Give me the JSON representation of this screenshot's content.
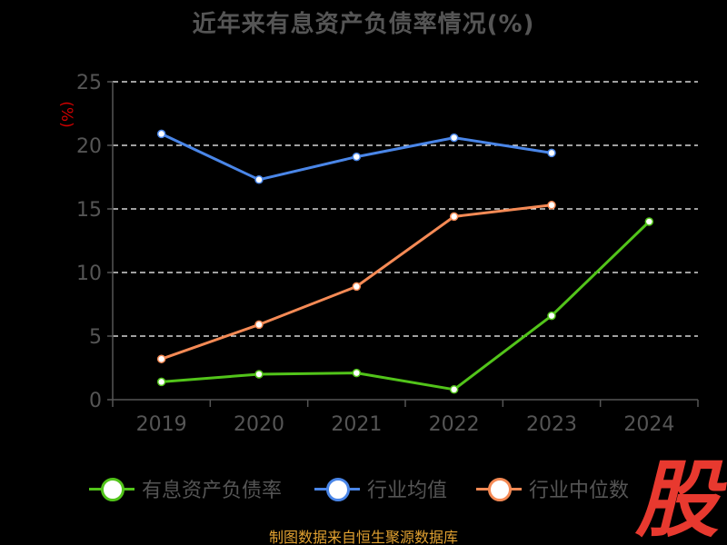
{
  "title": "近年来有息资产负债率情况(%)",
  "source_note": "制图数据来自恒生聚源数据库",
  "watermark_text": "股",
  "colors": {
    "background": "#000000",
    "title": "#555555",
    "axis": "#555555",
    "grid": "#ffffff",
    "ylabel": "#cc0000",
    "source": "#e0a030",
    "watermark": "#e8392f"
  },
  "chart_data": {
    "type": "line",
    "title": "近年来有息资产负债率情况(%)",
    "xlabel": "",
    "ylabel": "(%)",
    "categories": [
      "2019",
      "2020",
      "2021",
      "2022",
      "2023",
      "2024"
    ],
    "ylim": [
      0,
      25
    ],
    "yticks": [
      0,
      5,
      10,
      15,
      20,
      25
    ],
    "grid": true,
    "grid_style": "dashed",
    "legend_position": "bottom",
    "series": [
      {
        "name": "有息资产负债率",
        "color": "#52c41a",
        "values": [
          1.4,
          2.0,
          2.1,
          0.8,
          6.6,
          14.0
        ]
      },
      {
        "name": "行业均值",
        "color": "#4a86e8",
        "values": [
          20.9,
          17.3,
          19.1,
          20.6,
          19.4,
          null
        ]
      },
      {
        "name": "行业中位数",
        "color": "#f58a55",
        "values": [
          3.2,
          5.9,
          8.9,
          14.4,
          15.3,
          null
        ]
      }
    ]
  }
}
